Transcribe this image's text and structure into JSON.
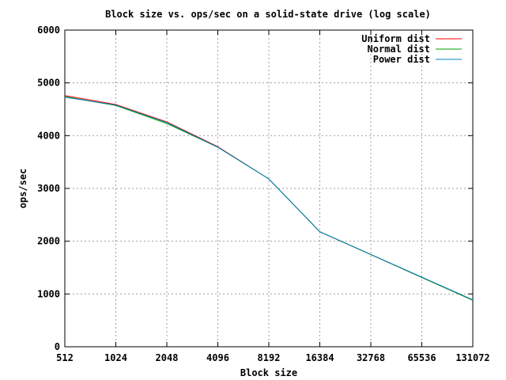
{
  "chart_data": {
    "type": "line",
    "title": "Block size vs. ops/sec on a solid-state drive (log scale)",
    "xlabel": "Block size",
    "ylabel": "ops/sec",
    "x_scale": "log2",
    "xlim": [
      512,
      131072
    ],
    "ylim": [
      0,
      6000
    ],
    "x_ticks": [
      512,
      1024,
      2048,
      4096,
      8192,
      16384,
      32768,
      65536,
      131072
    ],
    "y_ticks": [
      0,
      1000,
      2000,
      3000,
      4000,
      5000,
      6000
    ],
    "grid": true,
    "legend_position": "top-right",
    "x": [
      512,
      1024,
      2048,
      4096,
      8192,
      16384,
      131072
    ],
    "series": [
      {
        "name": "Uniform dist",
        "color": "#ff0000",
        "values": [
          4760,
          4590,
          4260,
          3790,
          3180,
          2180,
          880
        ]
      },
      {
        "name": "Normal dist",
        "color": "#00a000",
        "values": [
          4740,
          4570,
          4230,
          3780,
          3180,
          2180,
          880
        ]
      },
      {
        "name": "Power dist",
        "color": "#0080c0",
        "values": [
          4730,
          4580,
          4250,
          3780,
          3180,
          2180,
          890
        ]
      }
    ]
  }
}
